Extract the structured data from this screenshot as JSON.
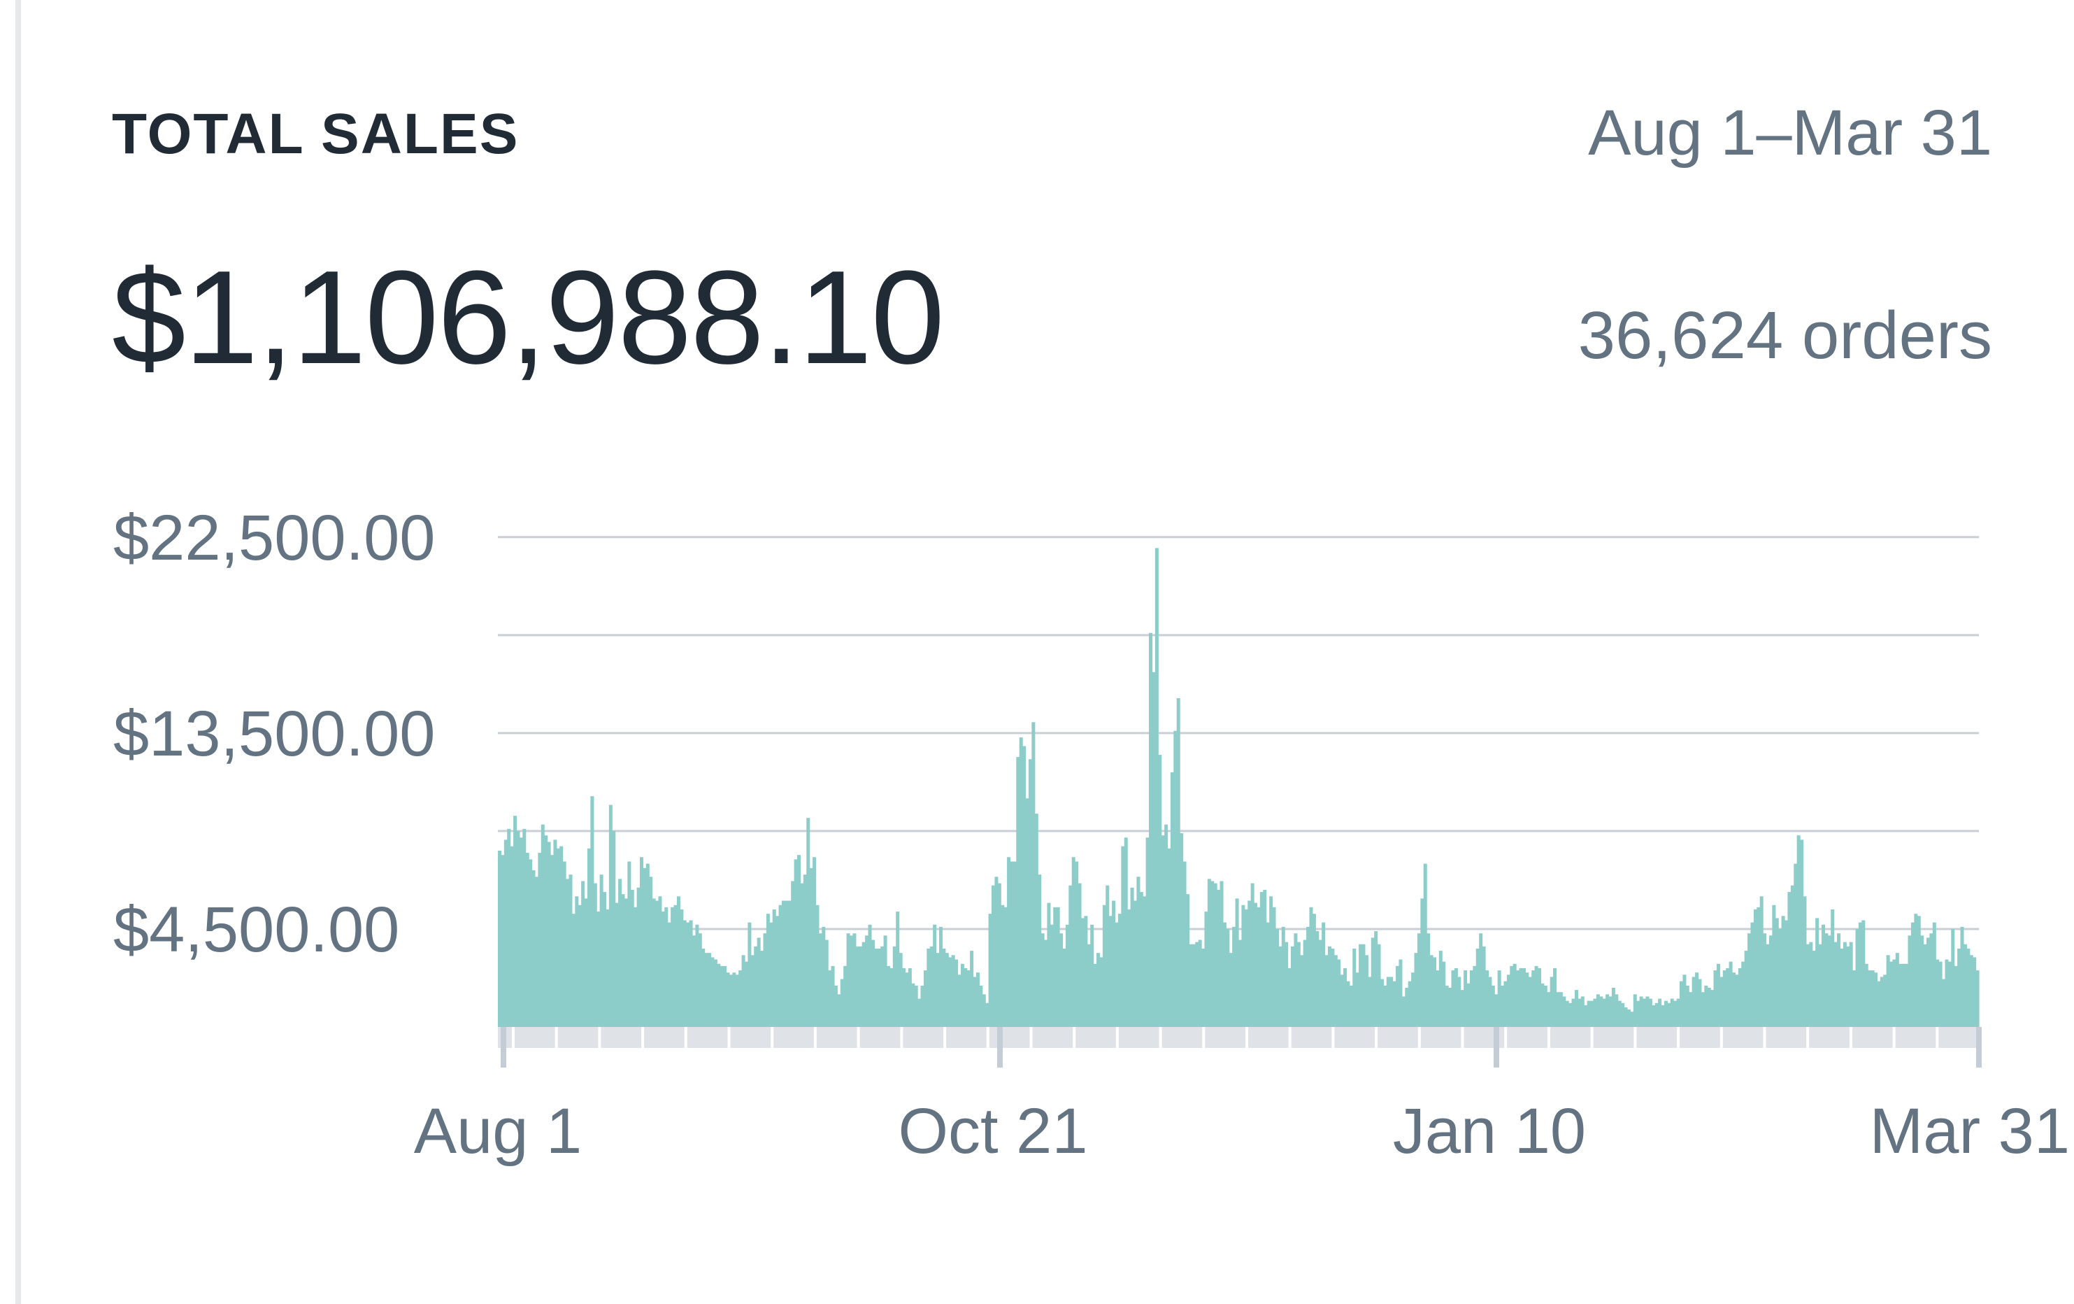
{
  "card": {
    "title": "TOTAL SALES",
    "date_range": "Aug 1–Mar 31",
    "total_sales": "$1,106,988.10",
    "orders": "36,624 orders"
  },
  "colors": {
    "bar_fill": "#8dcdc9",
    "grid": "#c9cfd6",
    "text_primary": "#212b36",
    "text_secondary": "#637381",
    "axis_ticks": "#c4cdd5"
  },
  "chart_data": {
    "type": "bar",
    "title": "TOTAL SALES",
    "xlabel": "",
    "ylabel": "",
    "ylim": [
      0,
      25000
    ],
    "grid": true,
    "y_ticks": [
      4500,
      13500,
      22500
    ],
    "y_tick_labels": [
      "$4,500.00",
      "$13,500.00",
      "$22,500.00"
    ],
    "x_tick_labels": [
      "Aug 1",
      "Oct 21",
      "Jan 10",
      "Mar 31"
    ],
    "x_range": [
      "Aug 1",
      "Mar 31"
    ],
    "series": [
      {
        "values": [
          8100,
          7900,
          8600,
          9100,
          8300,
          9700,
          9000,
          8700,
          9100,
          8000,
          7700,
          7200,
          6900,
          8000,
          9300,
          8800,
          8500,
          7900,
          8600,
          8200,
          8300,
          7600,
          6800,
          7000,
          5200,
          6000,
          5600,
          6700,
          5900,
          8200,
          10600,
          6600,
          5300,
          7000,
          6200,
          5400,
          10200,
          9000,
          5700,
          6800,
          6100,
          5900,
          7600,
          6300,
          5500,
          6400,
          7800,
          7300,
          7500,
          6900,
          5900,
          5800,
          6000,
          5300,
          5500,
          4800,
          5500,
          5600,
          6000,
          5400,
          4900,
          4800,
          4900,
          4200,
          4700,
          4300,
          3600,
          3400,
          3400,
          3200,
          3100,
          2900,
          2800,
          2800,
          2500,
          2400,
          2500,
          2400,
          2600,
          3300,
          3000,
          4800,
          3300,
          3700,
          4100,
          3500,
          4300,
          5200,
          4800,
          5400,
          5100,
          5600,
          5800,
          5800,
          5800,
          6700,
          7700,
          7900,
          6600,
          7000,
          9600,
          7300,
          7800,
          5600,
          4300,
          4600,
          4000,
          2600,
          2800,
          1900,
          1500,
          2200,
          2800,
          4300,
          4200,
          4300,
          3700,
          3700,
          3900,
          4200,
          4700,
          4000,
          3600,
          3600,
          3700,
          4200,
          2800,
          2700,
          3700,
          5300,
          3400,
          2700,
          2500,
          2700,
          2000,
          1900,
          1300,
          1900,
          2600,
          3600,
          3700,
          4700,
          3400,
          4600,
          3600,
          3400,
          3200,
          3300,
          3100,
          2400,
          2900,
          2700,
          2600,
          3500,
          2300,
          2500,
          1900,
          1500,
          1100,
          5200,
          6500,
          6900,
          6600,
          5600,
          5500,
          7800,
          7600,
          7600,
          12400,
          13300,
          12900,
          10500,
          12300,
          14000,
          9800,
          7000,
          4300,
          4000,
          5700,
          4700,
          5500,
          5500,
          4300,
          3600,
          4700,
          6500,
          7800,
          7600,
          6600,
          5000,
          5100,
          3800,
          4700,
          2900,
          3400,
          3200,
          5600,
          6500,
          5100,
          5800,
          4800,
          5200,
          8300,
          8700,
          5400,
          6400,
          5800,
          6900,
          6200,
          6000,
          8700,
          18100,
          16300,
          22000,
          12500,
          8800,
          9300,
          8200,
          11700,
          13600,
          15100,
          8900,
          7600,
          6100,
          3800,
          3800,
          3900,
          4000,
          3600,
          5300,
          6800,
          6700,
          6600,
          6300,
          6700,
          4800,
          4500,
          3400,
          4600,
          5900,
          4000,
          5600,
          5400,
          5800,
          6600,
          5700,
          5500,
          6200,
          6300,
          4800,
          6000,
          5500,
          4500,
          3700,
          4600,
          3900,
          2700,
          3700,
          4300,
          3900,
          3300,
          4000,
          4600,
          5500,
          5200,
          4400,
          4000,
          4800,
          3300,
          3700,
          3600,
          3300,
          3100,
          2400,
          2700,
          2100,
          1900,
          3600,
          2500,
          3800,
          3800,
          3300,
          2300,
          4100,
          4400,
          3800,
          2200,
          1900,
          2300,
          2300,
          2100,
          2800,
          3100,
          1400,
          1800,
          2100,
          2500,
          3400,
          4300,
          5900,
          7500,
          4300,
          3300,
          3200,
          2600,
          3500,
          3000,
          1900,
          1800,
          2600,
          2700,
          2300,
          1700,
          2600,
          2000,
          2600,
          2800,
          3600,
          4300,
          3700,
          2600,
          2300,
          1900,
          1500,
          2600,
          1900,
          2100,
          2400,
          2800,
          2900,
          2600,
          2700,
          2700,
          2500,
          2300,
          2600,
          2800,
          2700,
          2000,
          1900,
          1600,
          2300,
          2700,
          1600,
          1600,
          1400,
          1200,
          1100,
          1300,
          1700,
          1300,
          1400,
          1000,
          1200,
          1200,
          1300,
          1500,
          1400,
          1300,
          1500,
          1400,
          1800,
          1500,
          1200,
          1100,
          900,
          800,
          700,
          1500,
          1200,
          1400,
          1300,
          1400,
          1300,
          1000,
          1100,
          1300,
          1000,
          1200,
          1100,
          1300,
          1200,
          1300,
          2100,
          2400,
          1900,
          1600,
          2300,
          2500,
          2200,
          1600,
          1900,
          1800,
          1700,
          2600,
          2900,
          2300,
          2600,
          2700,
          3000,
          2500,
          2400,
          2700,
          3000,
          3500,
          4300,
          4800,
          5400,
          5500,
          6000,
          4300,
          3800,
          4200,
          5600,
          5000,
          4500,
          5100,
          4900,
          6200,
          6500,
          7500,
          8800,
          8600,
          6000,
          3800,
          3900,
          3500,
          5000,
          3800,
          4700,
          4300,
          4200,
          5400,
          3900,
          4300,
          3600,
          3900,
          3700,
          3900,
          2600,
          4500,
          4800,
          4900,
          2900,
          2600,
          2600,
          2500,
          2100,
          2300,
          2400,
          3300,
          3000,
          3100,
          3400,
          2900,
          2900,
          2900,
          4200,
          4800,
          5200,
          5100,
          4200,
          3800,
          4100,
          4300,
          4800,
          3100,
          3000,
          2200,
          3100,
          3000,
          4500,
          2800,
          3600,
          4600,
          3800,
          3600,
          3300,
          3200,
          2600
        ]
      }
    ]
  }
}
